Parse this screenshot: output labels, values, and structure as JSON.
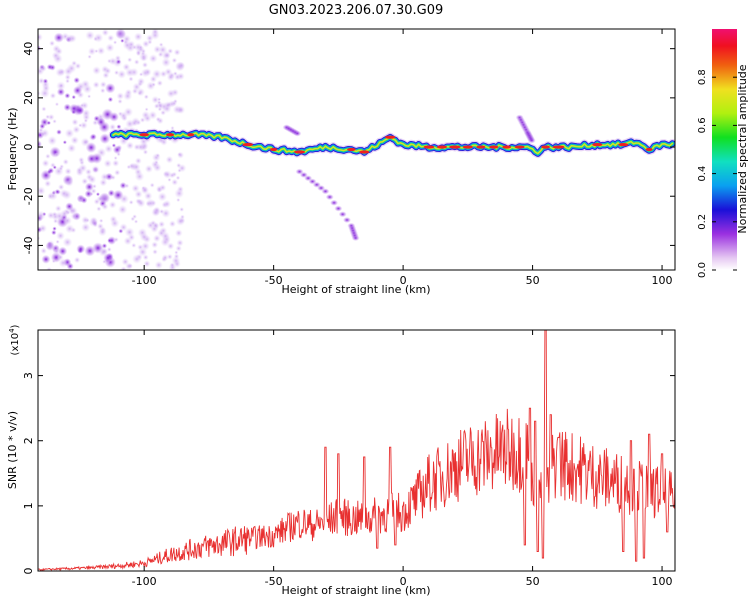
{
  "title": "GN03.2023.206.07.30.G09",
  "chart_data": [
    {
      "type": "heatmap",
      "xlabel": "Height of straight line (km)",
      "ylabel": "Frequency (Hz)",
      "xlim": [
        -141,
        105
      ],
      "ylim": [
        -50,
        48
      ],
      "xticks": [
        -100,
        -50,
        0,
        50,
        100
      ],
      "yticks": [
        -40,
        -20,
        0,
        20,
        40
      ],
      "colorbar": {
        "label": "Normalized spectral amplitude",
        "range": [
          0,
          1
        ],
        "ticks": [
          0.0,
          0.2,
          0.4,
          0.6,
          0.8
        ],
        "tick_labels": [
          "0.0",
          "0.2",
          "0.4",
          "0.6",
          "0.8"
        ]
      },
      "ridge": [
        [
          -112,
          5
        ],
        [
          -100,
          5
        ],
        [
          -80,
          5
        ],
        [
          -70,
          4
        ],
        [
          -60,
          1
        ],
        [
          -50,
          -1
        ],
        [
          -40,
          -2
        ],
        [
          -30,
          0
        ],
        [
          -20,
          -1
        ],
        [
          -15,
          -2
        ],
        [
          -8,
          2
        ],
        [
          -5,
          4
        ],
        [
          0,
          1
        ],
        [
          10,
          0
        ],
        [
          20,
          0
        ],
        [
          30,
          0
        ],
        [
          40,
          0
        ],
        [
          48,
          0
        ],
        [
          52,
          -2
        ],
        [
          55,
          0
        ],
        [
          65,
          0
        ],
        [
          75,
          1
        ],
        [
          85,
          1
        ],
        [
          90,
          2
        ],
        [
          95,
          -1
        ],
        [
          100,
          1
        ],
        [
          104,
          1
        ]
      ],
      "branches": [
        [
          [
            -40,
            -10
          ],
          [
            -30,
            -18
          ],
          [
            -20,
            -32
          ],
          [
            -18,
            -38
          ]
        ],
        [
          [
            45,
            12
          ],
          [
            48,
            6
          ],
          [
            50,
            2
          ]
        ],
        [
          [
            -45,
            8
          ],
          [
            -40,
            5
          ]
        ]
      ],
      "noise_region": [
        -141,
        -95
      ]
    },
    {
      "type": "line",
      "xlabel": "Height of straight line (km)",
      "ylabel": "SNR (10 * v/v)",
      "y_multiplier": "(x10",
      "y_multiplier_exp": "4",
      "y_multiplier_close": ")",
      "xlim": [
        -141,
        105
      ],
      "ylim": [
        0,
        3.7
      ],
      "xticks": [
        -100,
        -50,
        0,
        50,
        100
      ],
      "yticks": [
        0,
        1,
        2,
        3
      ],
      "color": "#e83030",
      "envelope": {
        "x": [
          -141,
          -120,
          -110,
          -100,
          -90,
          -80,
          -70,
          -60,
          -50,
          -45,
          -40,
          -35,
          -30,
          -25,
          -20,
          -15,
          -10,
          -5,
          0,
          5,
          10,
          15,
          20,
          25,
          30,
          35,
          40,
          45,
          48,
          50,
          52,
          55,
          58,
          60,
          65,
          70,
          75,
          80,
          85,
          90,
          95,
          100,
          105
        ],
        "y": [
          0.02,
          0.05,
          0.08,
          0.12,
          0.25,
          0.35,
          0.42,
          0.5,
          0.55,
          0.65,
          0.75,
          0.7,
          0.75,
          0.85,
          0.8,
          0.8,
          0.85,
          0.9,
          0.9,
          1.1,
          1.35,
          1.45,
          1.6,
          1.7,
          1.75,
          1.8,
          1.85,
          1.85,
          1.8,
          1.5,
          1.3,
          1.1,
          1.65,
          1.7,
          1.6,
          1.55,
          1.45,
          1.4,
          1.35,
          1.3,
          1.25,
          1.2,
          1.1
        ]
      },
      "spikes": [
        [
          -30,
          1.9
        ],
        [
          -25,
          1.8
        ],
        [
          -15,
          1.75
        ],
        [
          -10,
          1.75
        ],
        [
          -5,
          1.9
        ],
        [
          47,
          2.6
        ],
        [
          49,
          2.5
        ],
        [
          51,
          2.3
        ],
        [
          54,
          3.1
        ],
        [
          55,
          3.7
        ],
        [
          57,
          2.4
        ],
        [
          60,
          2.05
        ],
        [
          88,
          2.0
        ],
        [
          90,
          2.25
        ],
        [
          95,
          2.1
        ],
        [
          100,
          1.8
        ]
      ],
      "dips": [
        [
          -10,
          0.35
        ],
        [
          -3,
          0.4
        ],
        [
          47,
          0.4
        ],
        [
          52,
          0.3
        ],
        [
          54,
          0.2
        ],
        [
          85,
          0.3
        ],
        [
          90,
          0.15
        ],
        [
          93,
          0.2
        ],
        [
          102,
          0.6
        ]
      ]
    }
  ]
}
